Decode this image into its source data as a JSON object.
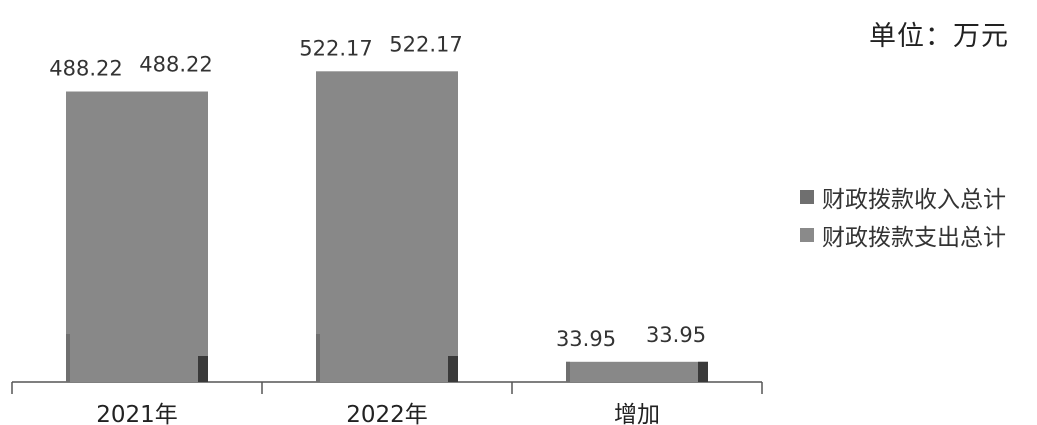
{
  "chart_data": {
    "type": "bar",
    "unit": "单位：万元",
    "categories": [
      "2021年",
      "2022年",
      "增加"
    ],
    "series": [
      {
        "name": "财政拨款收入总计",
        "values": [
          488.22,
          522.17,
          33.95
        ],
        "labels": [
          "488.22",
          "522.17",
          "33.95"
        ],
        "color": "#6f6f6f"
      },
      {
        "name": "财政拨款支出总计",
        "values": [
          488.22,
          522.17,
          33.95
        ],
        "labels": [
          "488.22",
          "522.17",
          "33.95"
        ],
        "color": "#8a8a8a"
      }
    ],
    "ylim": [
      0,
      570
    ],
    "bar_fill": "#888888",
    "grid": false,
    "legend_position": "right"
  }
}
